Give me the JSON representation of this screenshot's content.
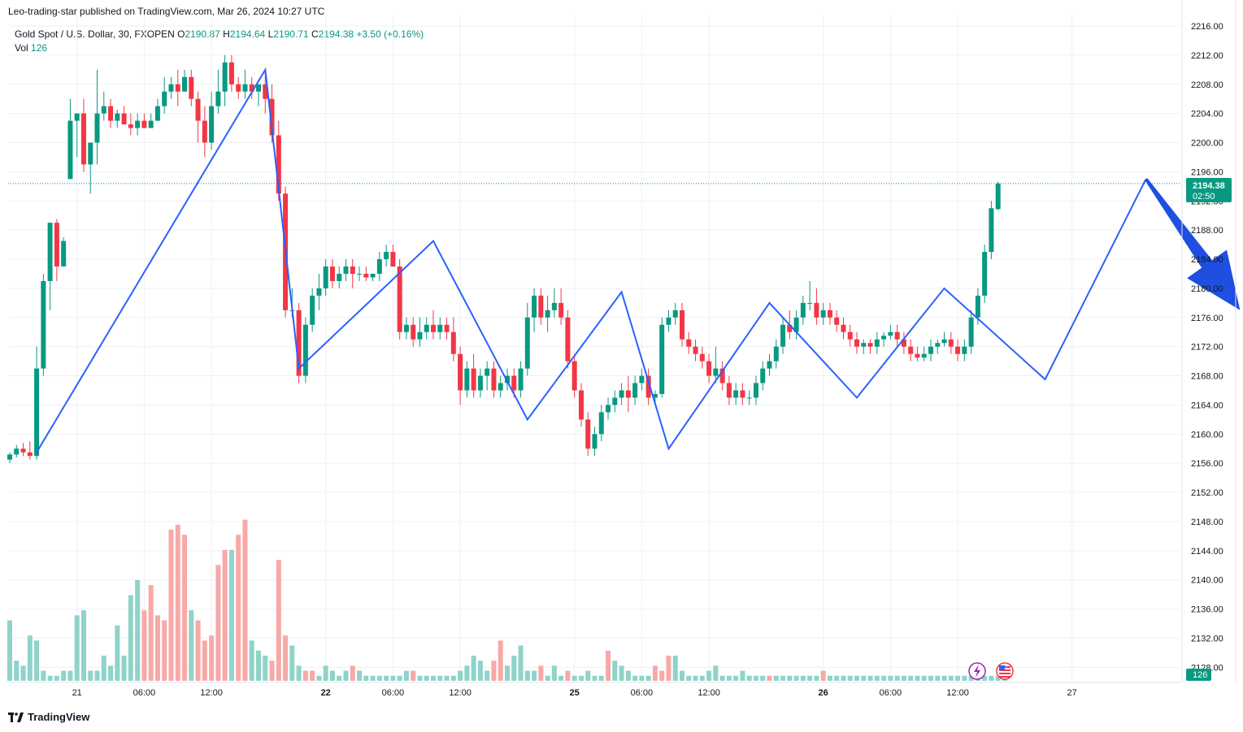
{
  "header": {
    "publisher": "Leo-trading-star published on TradingView.com, Mar 26, 2024 10:27 UTC"
  },
  "legend": {
    "symbol": "Gold Spot / U.S. Dollar, 30, FXOPEN",
    "o_label": "O",
    "o_value": "2190.87",
    "h_label": "H",
    "h_value": "2194.64",
    "l_label": "L",
    "l_value": "2190.71",
    "c_label": "C",
    "c_value": "2194.38",
    "change": "+3.50 (+0.16%)",
    "vol_label": "Vol",
    "vol_value": "126"
  },
  "price_label": {
    "price": "2194.38",
    "countdown": "02:50"
  },
  "volume_label": "126",
  "footer": {
    "brand": "TradingView"
  },
  "colors": {
    "up": "#089981",
    "down": "#f23645",
    "up_vol": "#8fd3c9",
    "down_vol": "#f7a9a7",
    "zigzag": "#2962ff",
    "arrow": "#1f4fe0",
    "grid": "#eef0f3"
  },
  "chart_data": {
    "type": "candlestick",
    "symbol": "XAUUSD",
    "timeframe": "30",
    "ylim": [
      2124,
      2216
    ],
    "y_ticks": [
      "2128.00",
      "2132.00",
      "2136.00",
      "2140.00",
      "2144.00",
      "2148.00",
      "2152.00",
      "2156.00",
      "2160.00",
      "2164.00",
      "2168.00",
      "2172.00",
      "2176.00",
      "2180.00",
      "2184.00",
      "2188.00",
      "2192.00",
      "2196.00",
      "2200.00",
      "2204.00",
      "2208.00",
      "2212.00",
      "2216.00"
    ],
    "x_ticks": [
      {
        "label": "21",
        "bold": false,
        "bar": 10
      },
      {
        "label": "06:00",
        "bold": false,
        "bar": 20
      },
      {
        "label": "12:00",
        "bold": false,
        "bar": 30
      },
      {
        "label": "22",
        "bold": true,
        "bar": 47
      },
      {
        "label": "06:00",
        "bold": false,
        "bar": 57
      },
      {
        "label": "12:00",
        "bold": false,
        "bar": 67
      },
      {
        "label": "25",
        "bold": true,
        "bar": 84
      },
      {
        "label": "06:00",
        "bold": false,
        "bar": 94
      },
      {
        "label": "12:00",
        "bold": false,
        "bar": 104
      },
      {
        "label": "26",
        "bold": true,
        "bar": 121
      },
      {
        "label": "06:00",
        "bold": false,
        "bar": 131
      },
      {
        "label": "12:00",
        "bold": false,
        "bar": 141
      },
      {
        "label": "27",
        "bold": false,
        "bar": 158
      }
    ],
    "current_price": 2194.38,
    "candles": [
      [
        2156.5,
        2157.5,
        2156,
        2157.2
      ],
      [
        2157.2,
        2158.5,
        2156.8,
        2158
      ],
      [
        2158,
        2158.8,
        2157,
        2157.5
      ],
      [
        2157.5,
        2159,
        2156.5,
        2157
      ],
      [
        2157,
        2172,
        2156.5,
        2169
      ],
      [
        2169,
        2182,
        2168,
        2181
      ],
      [
        2181,
        2189,
        2177,
        2189
      ],
      [
        2189,
        2189.5,
        2181,
        2183
      ],
      [
        2183,
        2187,
        2183,
        2186.5
      ],
      [
        2195,
        2206,
        2195,
        2203
      ],
      [
        2203,
        2204,
        2198,
        2204
      ],
      [
        2204,
        2206,
        2196,
        2197
      ],
      [
        2197,
        2200,
        2193,
        2200
      ],
      [
        2200,
        2210,
        2197,
        2204
      ],
      [
        2204,
        2207,
        2203,
        2205
      ],
      [
        2205,
        2206,
        2202,
        2203
      ],
      [
        2203,
        2204.5,
        2202,
        2204
      ],
      [
        2204,
        2205,
        2203,
        2202.5
      ],
      [
        2202.5,
        2204,
        2201,
        2202
      ],
      [
        2202,
        2204,
        2201,
        2203
      ],
      [
        2203,
        2204,
        2202,
        2202
      ],
      [
        2202,
        2204,
        2202,
        2203
      ],
      [
        2203,
        2206,
        2203,
        2205
      ],
      [
        2205,
        2209,
        2204,
        2207
      ],
      [
        2207,
        2209,
        2206,
        2208
      ],
      [
        2208,
        2210,
        2205,
        2207
      ],
      [
        2207,
        2210,
        2207,
        2209
      ],
      [
        2209,
        2210,
        2205,
        2206
      ],
      [
        2206,
        2207,
        2200,
        2203
      ],
      [
        2203,
        2205,
        2198,
        2200
      ],
      [
        2200,
        2207,
        2199,
        2205
      ],
      [
        2205,
        2210,
        2204,
        2207
      ],
      [
        2207,
        2212,
        2205,
        2211
      ],
      [
        2211,
        2212,
        2207,
        2208
      ],
      [
        2208,
        2209,
        2206,
        2207
      ],
      [
        2207,
        2210,
        2206,
        2208
      ],
      [
        2208,
        2209,
        2206,
        2207
      ],
      [
        2207,
        2208,
        2205,
        2208
      ],
      [
        2208,
        2210,
        2204,
        2206
      ],
      [
        2206,
        2208,
        2200,
        2201
      ],
      [
        2201,
        2203,
        2192,
        2193
      ],
      [
        2193,
        2194,
        2176,
        2177
      ],
      [
        2177,
        2180,
        2176,
        2177
      ],
      [
        2177,
        2178,
        2167,
        2168
      ],
      [
        2168,
        2176,
        2167,
        2175
      ],
      [
        2175,
        2180,
        2174,
        2179
      ],
      [
        2179,
        2182,
        2177,
        2180
      ],
      [
        2180,
        2184,
        2179,
        2183
      ],
      [
        2183,
        2184,
        2180,
        2181
      ],
      [
        2181,
        2183,
        2180,
        2182
      ],
      [
        2182,
        2184,
        2181,
        2183
      ],
      [
        2183,
        2184,
        2180,
        2182
      ],
      [
        2182,
        2183,
        2181,
        2182
      ],
      [
        2182,
        2183,
        2181,
        2181.5
      ],
      [
        2181.5,
        2182,
        2181,
        2182
      ],
      [
        2182,
        2185,
        2181,
        2184
      ],
      [
        2184,
        2186,
        2183,
        2185
      ],
      [
        2185,
        2186,
        2183,
        2183
      ],
      [
        2183,
        2184,
        2173,
        2174
      ],
      [
        2174,
        2176,
        2173,
        2175
      ],
      [
        2175,
        2176,
        2172,
        2173
      ],
      [
        2173,
        2176,
        2172,
        2174
      ],
      [
        2174,
        2176,
        2173,
        2175
      ],
      [
        2175,
        2177,
        2173,
        2174
      ],
      [
        2174,
        2176,
        2173,
        2175
      ],
      [
        2175,
        2176,
        2173,
        2174
      ],
      [
        2174,
        2176,
        2170,
        2171
      ],
      [
        2171,
        2172,
        2164,
        2166
      ],
      [
        2166,
        2170,
        2165,
        2169
      ],
      [
        2169,
        2171,
        2165,
        2166
      ],
      [
        2166,
        2169,
        2165,
        2168
      ],
      [
        2168,
        2170,
        2166,
        2169
      ],
      [
        2169,
        2170,
        2165,
        2166
      ],
      [
        2166,
        2168,
        2165,
        2167
      ],
      [
        2167,
        2169,
        2166,
        2168
      ],
      [
        2168,
        2169,
        2165,
        2166
      ],
      [
        2166,
        2170,
        2165,
        2169
      ],
      [
        2169,
        2178,
        2168,
        2176
      ],
      [
        2176,
        2180,
        2174,
        2179
      ],
      [
        2179,
        2180,
        2175,
        2176
      ],
      [
        2176,
        2179,
        2174,
        2177
      ],
      [
        2177,
        2180,
        2176,
        2178
      ],
      [
        2178,
        2180,
        2175,
        2176
      ],
      [
        2176,
        2177,
        2169,
        2170
      ],
      [
        2170,
        2171,
        2165,
        2166
      ],
      [
        2166,
        2167,
        2161,
        2162
      ],
      [
        2162,
        2163,
        2157,
        2158
      ],
      [
        2158,
        2161,
        2157,
        2160
      ],
      [
        2160,
        2164,
        2159,
        2163
      ],
      [
        2163,
        2165,
        2162,
        2164
      ],
      [
        2164,
        2166,
        2163,
        2165
      ],
      [
        2165,
        2167,
        2164,
        2166
      ],
      [
        2166,
        2168,
        2163,
        2165
      ],
      [
        2165,
        2168,
        2164,
        2167
      ],
      [
        2167,
        2169,
        2166,
        2168
      ],
      [
        2168,
        2169,
        2164,
        2165
      ],
      [
        2165,
        2166,
        2164,
        2165.5
      ],
      [
        2165.5,
        2176,
        2165,
        2175
      ],
      [
        2175,
        2177,
        2174,
        2176
      ],
      [
        2176,
        2178,
        2175,
        2177
      ],
      [
        2177,
        2178,
        2172,
        2173
      ],
      [
        2173,
        2174,
        2171,
        2172
      ],
      [
        2172,
        2173,
        2170,
        2171
      ],
      [
        2171,
        2172,
        2169,
        2170
      ],
      [
        2170,
        2171,
        2167,
        2168
      ],
      [
        2168,
        2172,
        2167,
        2169
      ],
      [
        2169,
        2170,
        2166,
        2167
      ],
      [
        2167,
        2168,
        2164,
        2165
      ],
      [
        2165,
        2167,
        2164,
        2166
      ],
      [
        2166,
        2167,
        2164,
        2165
      ],
      [
        2165,
        2166,
        2164,
        2165
      ],
      [
        2165,
        2168,
        2164,
        2167
      ],
      [
        2167,
        2170,
        2166,
        2169
      ],
      [
        2169,
        2171,
        2168,
        2170
      ],
      [
        2170,
        2173,
        2169,
        2172
      ],
      [
        2172,
        2176,
        2171,
        2175
      ],
      [
        2175,
        2177,
        2173,
        2174
      ],
      [
        2174,
        2177,
        2173,
        2176
      ],
      [
        2176,
        2179,
        2175,
        2178
      ],
      [
        2178,
        2181,
        2177,
        2178
      ],
      [
        2178,
        2180,
        2175,
        2176
      ],
      [
        2176,
        2178,
        2175,
        2177
      ],
      [
        2177,
        2178,
        2175,
        2176
      ],
      [
        2176,
        2177,
        2174,
        2175
      ],
      [
        2175,
        2176,
        2173,
        2174
      ],
      [
        2174,
        2175,
        2172,
        2173
      ],
      [
        2173,
        2174,
        2171,
        2172
      ],
      [
        2172,
        2173,
        2171,
        2172.5
      ],
      [
        2172.5,
        2173,
        2171,
        2172
      ],
      [
        2172,
        2174,
        2171,
        2173
      ],
      [
        2173,
        2174,
        2172,
        2173.5
      ],
      [
        2173.5,
        2175,
        2173,
        2174
      ],
      [
        2174,
        2175,
        2172,
        2173
      ],
      [
        2173,
        2174,
        2171,
        2172
      ],
      [
        2172,
        2173,
        2170,
        2171
      ],
      [
        2171,
        2172,
        2170,
        2170.5
      ],
      [
        2170.5,
        2172,
        2170,
        2171
      ],
      [
        2171,
        2173,
        2170,
        2172
      ],
      [
        2172,
        2173,
        2171,
        2172.5
      ],
      [
        2172.5,
        2174,
        2172,
        2173
      ],
      [
        2173,
        2174,
        2171,
        2172
      ],
      [
        2172,
        2173,
        2170,
        2171
      ],
      [
        2171,
        2173,
        2170,
        2172
      ],
      [
        2172,
        2177,
        2171,
        2176
      ],
      [
        2176,
        2180,
        2175,
        2179
      ],
      [
        2179,
        2186,
        2178,
        2185
      ],
      [
        2185,
        2192,
        2184,
        2191
      ],
      [
        2190.87,
        2194.64,
        2190.71,
        2194.38
      ]
    ],
    "volume": [
      [
        12,
        0
      ],
      [
        4,
        0
      ],
      [
        3,
        0
      ],
      [
        9,
        0
      ],
      [
        8,
        0
      ],
      [
        2,
        0
      ],
      [
        1,
        0
      ],
      [
        1,
        0
      ],
      [
        2,
        0
      ],
      [
        2,
        0
      ],
      [
        13,
        0
      ],
      [
        14,
        0
      ],
      [
        2,
        0
      ],
      [
        2,
        0
      ],
      [
        5,
        0
      ],
      [
        3,
        0
      ],
      [
        11,
        0
      ],
      [
        5,
        0
      ],
      [
        17,
        0
      ],
      [
        20,
        0
      ],
      [
        14,
        1
      ],
      [
        19,
        1
      ],
      [
        13,
        1
      ],
      [
        12,
        1
      ],
      [
        30,
        1
      ],
      [
        31,
        1
      ],
      [
        29,
        1
      ],
      [
        14,
        0
      ],
      [
        12,
        1
      ],
      [
        8,
        1
      ],
      [
        9,
        1
      ],
      [
        23,
        1
      ],
      [
        26,
        1
      ],
      [
        26,
        0
      ],
      [
        29,
        1
      ],
      [
        32,
        1
      ],
      [
        8,
        0
      ],
      [
        6,
        0
      ],
      [
        5,
        0
      ],
      [
        4,
        1
      ],
      [
        24,
        1
      ],
      [
        9,
        1
      ],
      [
        7,
        0
      ],
      [
        3,
        0
      ],
      [
        2,
        1
      ],
      [
        2,
        1
      ],
      [
        1,
        0
      ],
      [
        3,
        0
      ],
      [
        2,
        0
      ],
      [
        1,
        0
      ],
      [
        2,
        0
      ],
      [
        3,
        1
      ],
      [
        2,
        0
      ],
      [
        1,
        0
      ],
      [
        1,
        0
      ],
      [
        1,
        0
      ],
      [
        1,
        0
      ],
      [
        1,
        0
      ],
      [
        1,
        0
      ],
      [
        2,
        0
      ],
      [
        2,
        1
      ],
      [
        1,
        0
      ],
      [
        1,
        0
      ],
      [
        1,
        0
      ],
      [
        1,
        0
      ],
      [
        1,
        0
      ],
      [
        1,
        0
      ],
      [
        2,
        0
      ],
      [
        3,
        0
      ],
      [
        5,
        0
      ],
      [
        4,
        0
      ],
      [
        2,
        0
      ],
      [
        4,
        1
      ],
      [
        8,
        1
      ],
      [
        3,
        0
      ],
      [
        5,
        0
      ],
      [
        7,
        0
      ],
      [
        2,
        0
      ],
      [
        2,
        0
      ],
      [
        3,
        1
      ],
      [
        1,
        0
      ],
      [
        3,
        0
      ],
      [
        1,
        0
      ],
      [
        2,
        1
      ],
      [
        1,
        0
      ],
      [
        1,
        0
      ],
      [
        2,
        0
      ],
      [
        1,
        0
      ],
      [
        1,
        0
      ],
      [
        6,
        1
      ],
      [
        4,
        0
      ],
      [
        3,
        0
      ],
      [
        2,
        0
      ],
      [
        1,
        0
      ],
      [
        1,
        0
      ],
      [
        1,
        0
      ],
      [
        3,
        1
      ],
      [
        2,
        1
      ],
      [
        5,
        1
      ],
      [
        5,
        0
      ],
      [
        2,
        0
      ],
      [
        1,
        0
      ],
      [
        1,
        0
      ],
      [
        1,
        0
      ],
      [
        2,
        0
      ],
      [
        3,
        0
      ],
      [
        1,
        0
      ],
      [
        1,
        0
      ],
      [
        1,
        0
      ],
      [
        2,
        0
      ],
      [
        1,
        0
      ],
      [
        1,
        0
      ],
      [
        1,
        0
      ],
      [
        1,
        1
      ],
      [
        1,
        0
      ],
      [
        1,
        0
      ],
      [
        1,
        0
      ],
      [
        1,
        0
      ],
      [
        1,
        0
      ],
      [
        1,
        0
      ],
      [
        1,
        0
      ],
      [
        2,
        1
      ],
      [
        1,
        0
      ],
      [
        1,
        0
      ],
      [
        1,
        0
      ],
      [
        1,
        0
      ],
      [
        1,
        0
      ],
      [
        1,
        0
      ],
      [
        1,
        0
      ],
      [
        1,
        0
      ],
      [
        1,
        0
      ],
      [
        1,
        0
      ],
      [
        1,
        0
      ],
      [
        1,
        0
      ],
      [
        1,
        0
      ],
      [
        1,
        0
      ],
      [
        1,
        0
      ],
      [
        1,
        0
      ],
      [
        1,
        0
      ],
      [
        1,
        0
      ],
      [
        1,
        0
      ],
      [
        1,
        0
      ],
      [
        1,
        0
      ],
      [
        1,
        0
      ],
      [
        1,
        0
      ],
      [
        1,
        0
      ],
      [
        1,
        0
      ],
      [
        1,
        0
      ],
      [
        1,
        0
      ]
    ],
    "zigzag": [
      [
        4,
        2157.5
      ],
      [
        38,
        2210
      ],
      [
        43,
        2169
      ],
      [
        63,
        2186.5
      ],
      [
        77,
        2162
      ],
      [
        91,
        2179.5
      ],
      [
        98,
        2158
      ],
      [
        113,
        2178
      ],
      [
        126,
        2165
      ],
      [
        139,
        2180
      ],
      [
        154,
        2167.5
      ],
      [
        169,
        2195
      ]
    ],
    "projection_arrow": {
      "from_bar": 169,
      "from_price": 2195,
      "to_bar": 183,
      "to_price": 2177
    }
  }
}
